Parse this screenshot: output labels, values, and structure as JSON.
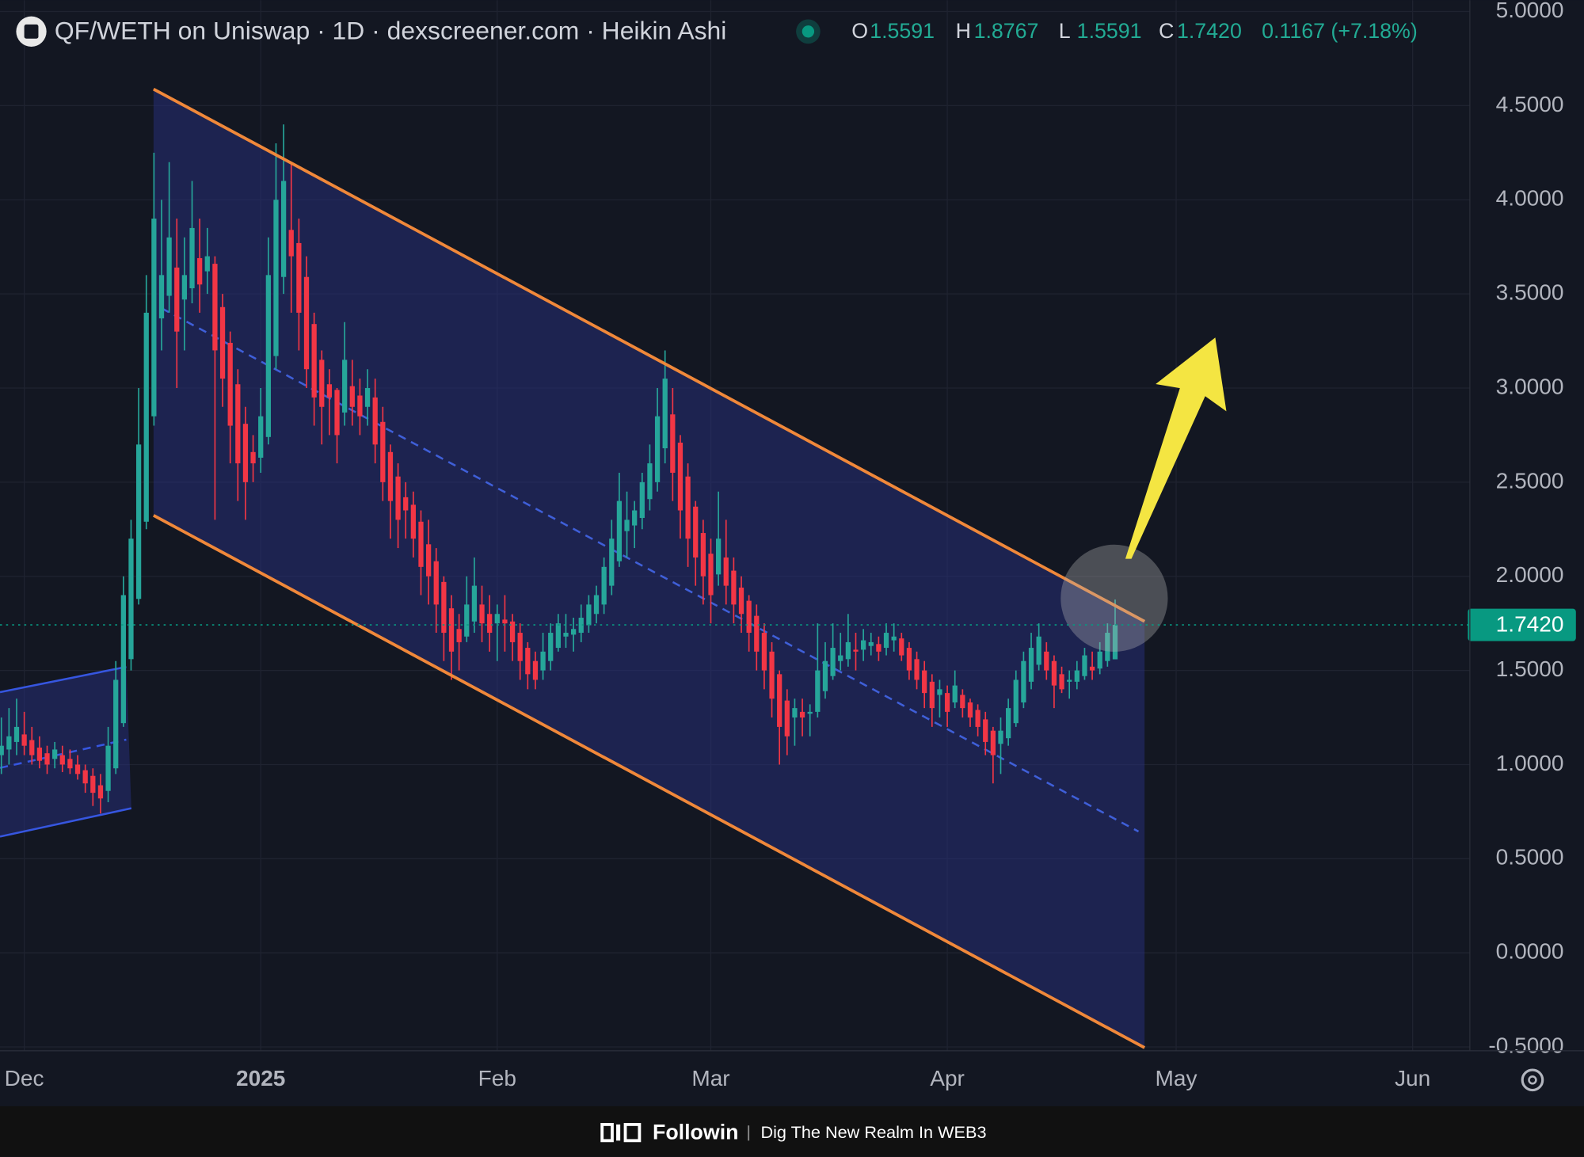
{
  "header": {
    "title": "QF/WETH on Uniswap · 1D · dexscreener.com · Heikin Ashi",
    "ohlc_legend": [
      {
        "key": "O",
        "value": "1.5591"
      },
      {
        "key": "H",
        "value": "1.8767"
      },
      {
        "key": "L",
        "value": "1.5591"
      },
      {
        "key": "C",
        "value": "1.7420"
      }
    ],
    "change": "0.1167 (+7.18%)"
  },
  "chart_data": {
    "type": "candlestick",
    "candles": [
      [
        1.05,
        1.25,
        0.95,
        1.1
      ],
      [
        1.08,
        1.3,
        1.0,
        1.15
      ],
      [
        1.12,
        1.35,
        1.05,
        1.2
      ],
      [
        1.16,
        1.28,
        1.05,
        1.1
      ],
      [
        1.13,
        1.2,
        1.0,
        1.05
      ],
      [
        1.09,
        1.15,
        0.98,
        1.02
      ],
      [
        1.06,
        1.1,
        0.95,
        1.0
      ],
      [
        1.03,
        1.12,
        0.98,
        1.08
      ],
      [
        1.05,
        1.1,
        0.96,
        1.0
      ],
      [
        1.03,
        1.08,
        0.95,
        0.98
      ],
      [
        1.0,
        1.05,
        0.92,
        0.95
      ],
      [
        0.97,
        1.0,
        0.85,
        0.9
      ],
      [
        0.94,
        0.98,
        0.78,
        0.85
      ],
      [
        0.89,
        0.95,
        0.74,
        0.82
      ],
      [
        0.86,
        1.2,
        0.8,
        1.1
      ],
      [
        0.98,
        1.55,
        0.95,
        1.45
      ],
      [
        1.22,
        2.0,
        1.2,
        1.9
      ],
      [
        1.56,
        2.3,
        1.5,
        2.2
      ],
      [
        1.88,
        3.0,
        1.85,
        2.7
      ],
      [
        2.29,
        3.6,
        2.25,
        3.4
      ],
      [
        2.85,
        4.25,
        2.8,
        3.9
      ],
      [
        3.37,
        4.0,
        3.2,
        3.6
      ],
      [
        3.49,
        4.2,
        3.4,
        3.8
      ],
      [
        3.64,
        3.9,
        3.0,
        3.3
      ],
      [
        3.47,
        3.8,
        3.2,
        3.6
      ],
      [
        3.53,
        4.1,
        3.45,
        3.85
      ],
      [
        3.69,
        3.9,
        3.4,
        3.55
      ],
      [
        3.62,
        3.85,
        3.5,
        3.7
      ],
      [
        3.66,
        3.7,
        2.3,
        3.2
      ],
      [
        3.43,
        3.5,
        2.9,
        3.05
      ],
      [
        3.24,
        3.3,
        2.6,
        2.8
      ],
      [
        3.02,
        3.1,
        2.4,
        2.6
      ],
      [
        2.81,
        2.9,
        2.3,
        2.5
      ],
      [
        2.66,
        2.75,
        2.5,
        2.6
      ],
      [
        2.63,
        3.0,
        2.55,
        2.85
      ],
      [
        2.74,
        3.8,
        2.7,
        3.6
      ],
      [
        3.17,
        4.3,
        3.1,
        4.0
      ],
      [
        3.59,
        4.4,
        3.5,
        4.1
      ],
      [
        3.84,
        4.2,
        3.4,
        3.7
      ],
      [
        3.77,
        3.9,
        3.2,
        3.4
      ],
      [
        3.59,
        3.7,
        3.0,
        3.1
      ],
      [
        3.34,
        3.4,
        2.8,
        2.95
      ],
      [
        3.15,
        3.2,
        2.7,
        2.9
      ],
      [
        3.02,
        3.1,
        2.75,
        2.95
      ],
      [
        2.99,
        3.0,
        2.6,
        2.75
      ],
      [
        2.87,
        3.35,
        2.8,
        3.15
      ],
      [
        3.01,
        3.15,
        2.8,
        2.9
      ],
      [
        2.96,
        3.05,
        2.75,
        2.85
      ],
      [
        2.9,
        3.1,
        2.8,
        3.0
      ],
      [
        2.95,
        3.05,
        2.6,
        2.7
      ],
      [
        2.82,
        2.9,
        2.4,
        2.5
      ],
      [
        2.66,
        2.7,
        2.2,
        2.4
      ],
      [
        2.53,
        2.6,
        2.15,
        2.3
      ],
      [
        2.42,
        2.5,
        2.2,
        2.35
      ],
      [
        2.38,
        2.45,
        2.1,
        2.2
      ],
      [
        2.29,
        2.35,
        1.9,
        2.05
      ],
      [
        2.17,
        2.3,
        1.85,
        2.0
      ],
      [
        2.08,
        2.15,
        1.7,
        1.85
      ],
      [
        1.97,
        2.0,
        1.55,
        1.7
      ],
      [
        1.83,
        1.9,
        1.45,
        1.6
      ],
      [
        1.72,
        1.8,
        1.5,
        1.65
      ],
      [
        1.68,
        2.0,
        1.65,
        1.85
      ],
      [
        1.76,
        2.1,
        1.7,
        1.95
      ],
      [
        1.85,
        1.95,
        1.65,
        1.75
      ],
      [
        1.8,
        1.9,
        1.6,
        1.7
      ],
      [
        1.75,
        1.85,
        1.55,
        1.8
      ],
      [
        1.77,
        1.9,
        1.6,
        1.75
      ],
      [
        1.76,
        1.8,
        1.55,
        1.65
      ],
      [
        1.7,
        1.75,
        1.45,
        1.55
      ],
      [
        1.62,
        1.65,
        1.4,
        1.48
      ],
      [
        1.55,
        1.6,
        1.4,
        1.45
      ],
      [
        1.5,
        1.7,
        1.45,
        1.6
      ],
      [
        1.55,
        1.75,
        1.5,
        1.7
      ],
      [
        1.62,
        1.8,
        1.6,
        1.75
      ],
      [
        1.68,
        1.8,
        1.62,
        1.7
      ],
      [
        1.69,
        1.78,
        1.6,
        1.72
      ],
      [
        1.7,
        1.85,
        1.65,
        1.78
      ],
      [
        1.74,
        1.9,
        1.7,
        1.85
      ],
      [
        1.8,
        1.95,
        1.75,
        1.9
      ],
      [
        1.85,
        2.1,
        1.8,
        2.05
      ],
      [
        1.95,
        2.3,
        1.9,
        2.2
      ],
      [
        2.08,
        2.55,
        2.05,
        2.4
      ],
      [
        2.24,
        2.45,
        2.1,
        2.3
      ],
      [
        2.27,
        2.4,
        2.15,
        2.35
      ],
      [
        2.31,
        2.55,
        2.25,
        2.5
      ],
      [
        2.41,
        2.7,
        2.35,
        2.6
      ],
      [
        2.5,
        3.0,
        2.45,
        2.85
      ],
      [
        2.68,
        3.2,
        2.6,
        3.05
      ],
      [
        2.86,
        3.0,
        2.4,
        2.55
      ],
      [
        2.71,
        2.75,
        2.2,
        2.35
      ],
      [
        2.53,
        2.6,
        2.05,
        2.2
      ],
      [
        2.37,
        2.4,
        1.95,
        2.1
      ],
      [
        2.23,
        2.3,
        1.85,
        2.0
      ],
      [
        2.12,
        2.2,
        1.75,
        1.9
      ],
      [
        2.01,
        2.45,
        1.95,
        2.2
      ],
      [
        2.1,
        2.3,
        1.85,
        1.95
      ],
      [
        2.03,
        2.1,
        1.75,
        1.85
      ],
      [
        1.94,
        2.0,
        1.7,
        1.8
      ],
      [
        1.87,
        1.9,
        1.6,
        1.7
      ],
      [
        1.79,
        1.85,
        1.5,
        1.6
      ],
      [
        1.7,
        1.75,
        1.4,
        1.5
      ],
      [
        1.6,
        1.65,
        1.25,
        1.35
      ],
      [
        1.48,
        1.5,
        1.0,
        1.2
      ],
      [
        1.34,
        1.4,
        1.05,
        1.15
      ],
      [
        1.25,
        1.35,
        1.1,
        1.3
      ],
      [
        1.28,
        1.35,
        1.15,
        1.25
      ],
      [
        1.27,
        1.32,
        1.15,
        1.28
      ],
      [
        1.28,
        1.75,
        1.25,
        1.5
      ],
      [
        1.39,
        1.65,
        1.35,
        1.55
      ],
      [
        1.47,
        1.75,
        1.45,
        1.62
      ],
      [
        1.55,
        1.7,
        1.5,
        1.58
      ],
      [
        1.56,
        1.8,
        1.52,
        1.65
      ],
      [
        1.61,
        1.7,
        1.5,
        1.6
      ],
      [
        1.61,
        1.72,
        1.55,
        1.66
      ],
      [
        1.63,
        1.7,
        1.58,
        1.65
      ],
      [
        1.64,
        1.68,
        1.55,
        1.6
      ],
      [
        1.62,
        1.75,
        1.58,
        1.7
      ],
      [
        1.66,
        1.75,
        1.6,
        1.68
      ],
      [
        1.67,
        1.7,
        1.55,
        1.58
      ],
      [
        1.62,
        1.65,
        1.45,
        1.5
      ],
      [
        1.56,
        1.6,
        1.4,
        1.45
      ],
      [
        1.5,
        1.55,
        1.3,
        1.38
      ],
      [
        1.44,
        1.48,
        1.2,
        1.3
      ],
      [
        1.37,
        1.45,
        1.25,
        1.4
      ],
      [
        1.38,
        1.42,
        1.2,
        1.28
      ],
      [
        1.33,
        1.5,
        1.3,
        1.42
      ],
      [
        1.37,
        1.4,
        1.25,
        1.3
      ],
      [
        1.33,
        1.35,
        1.2,
        1.25
      ],
      [
        1.29,
        1.32,
        1.15,
        1.2
      ],
      [
        1.24,
        1.28,
        1.05,
        1.12
      ],
      [
        1.18,
        1.2,
        0.9,
        1.05
      ],
      [
        1.11,
        1.25,
        0.95,
        1.18
      ],
      [
        1.14,
        1.35,
        1.1,
        1.3
      ],
      [
        1.22,
        1.5,
        1.2,
        1.45
      ],
      [
        1.33,
        1.6,
        1.3,
        1.55
      ],
      [
        1.44,
        1.7,
        1.4,
        1.62
      ],
      [
        1.53,
        1.75,
        1.5,
        1.68
      ],
      [
        1.6,
        1.65,
        1.45,
        1.5
      ],
      [
        1.55,
        1.58,
        1.3,
        1.42
      ],
      [
        1.48,
        1.52,
        1.38,
        1.4
      ],
      [
        1.44,
        1.5,
        1.35,
        1.45
      ],
      [
        1.44,
        1.55,
        1.4,
        1.5
      ],
      [
        1.47,
        1.62,
        1.45,
        1.58
      ],
      [
        1.52,
        1.6,
        1.45,
        1.5
      ],
      [
        1.51,
        1.65,
        1.48,
        1.6
      ],
      [
        1.55,
        1.75,
        1.52,
        1.7
      ],
      [
        1.5591,
        1.8767,
        1.5591,
        1.742
      ]
    ],
    "colors": {
      "up": "#26a69a",
      "down": "#f23645"
    },
    "xlim": [
      -0.18,
      192.5
    ],
    "xticks": [
      {
        "value": 3,
        "label": "Dec"
      },
      {
        "value": 34,
        "label": "2025"
      },
      {
        "value": 65,
        "label": "Feb"
      },
      {
        "value": 93,
        "label": "Mar"
      },
      {
        "value": 124,
        "label": "Apr"
      },
      {
        "value": 154,
        "label": "May"
      },
      {
        "value": 185,
        "label": "Jun"
      }
    ],
    "ylim": [
      -0.52,
      5.06
    ],
    "yticks": [
      {
        "value": -0.5,
        "label": "-0.5000"
      },
      {
        "value": 0,
        "label": "0.0000"
      },
      {
        "value": 0.5,
        "label": "0.5000"
      },
      {
        "value": 1,
        "label": "1.0000"
      },
      {
        "value": 1.5,
        "label": "1.5000"
      },
      {
        "value": 2,
        "label": "2.0000"
      },
      {
        "value": 2.5,
        "label": "2.5000"
      },
      {
        "value": 3,
        "label": "3.0000"
      },
      {
        "value": 3.5,
        "label": "3.5000"
      },
      {
        "value": 4,
        "label": "4.0000"
      },
      {
        "value": 4.5,
        "label": "4.5000"
      },
      {
        "value": 5,
        "label": "5.0000"
      }
    ],
    "last_price": {
      "value": 1.742,
      "label": "1.7420"
    },
    "grid": true
  },
  "footer": {
    "brand": "Followin",
    "tagline": "Dig The New Realm In WEB3"
  }
}
